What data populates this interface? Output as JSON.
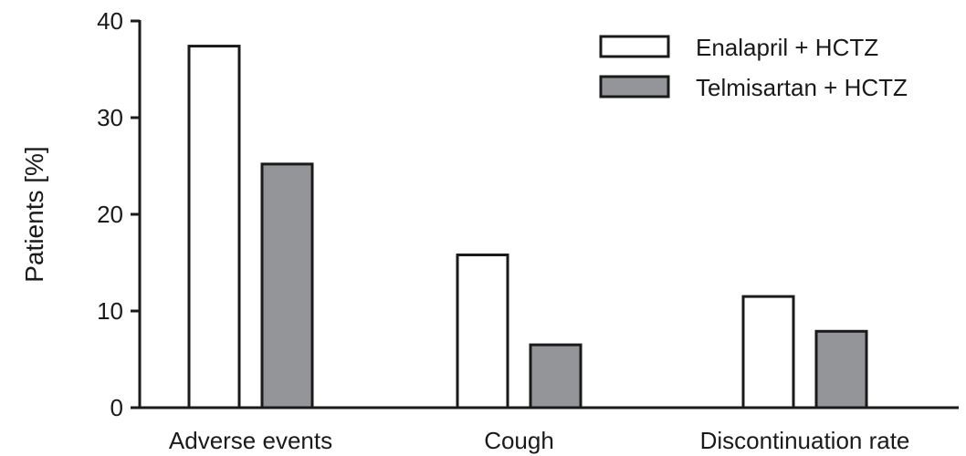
{
  "chart_data": {
    "type": "bar",
    "categories": [
      "Adverse events",
      "Cough",
      "Discontinuation rate"
    ],
    "series": [
      {
        "name": "Enalapril + HCTZ",
        "values": [
          37.4,
          15.8,
          11.5
        ],
        "color": "#ffffff"
      },
      {
        "name": "Telmisartan + HCTZ",
        "values": [
          25.2,
          6.5,
          7.9
        ],
        "color": "#939598"
      }
    ],
    "ylabel": "Patients [%]",
    "ylim": [
      0,
      40
    ],
    "yticks": [
      "0",
      "10",
      "20",
      "30",
      "40"
    ],
    "grid": false,
    "legend_position": "top-right",
    "bar_edge_color": "#1a1a1a"
  }
}
